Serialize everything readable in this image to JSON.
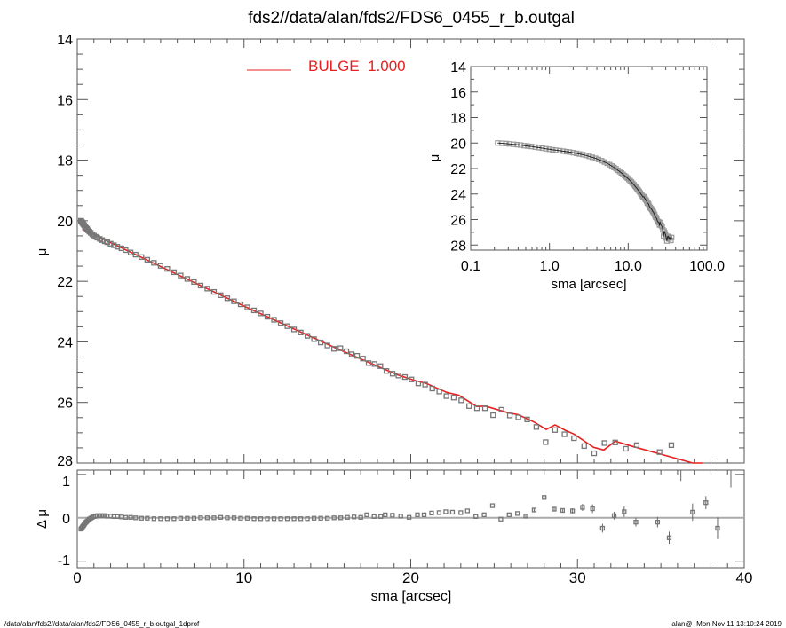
{
  "title": "fds2//data/alan/fds2/FDS6_0455_r_b.outgal",
  "footer": {
    "left": "/data/alan/fds2//data/alan/fds2/FDS6_0455_r_b.outgal_1dprof",
    "right": "alan@  Mon Nov 11 13:10:24 2019"
  },
  "colors": {
    "model": "#e8201f",
    "points": "#777777",
    "inset_model": "#222222"
  },
  "chart_data": [
    {
      "id": "main",
      "type": "scatter",
      "title": "fds2//data/alan/fds2/FDS6_0455_r_b.outgal",
      "xlabel": "",
      "ylabel": "μ",
      "xlim": [
        0,
        40
      ],
      "ylim": [
        28,
        14
      ],
      "xticks": [
        0,
        10,
        20,
        30,
        40
      ],
      "xtick_labels": [
        "0",
        "10",
        "20",
        "30",
        "40"
      ],
      "yticks": [
        14,
        16,
        18,
        20,
        22,
        24,
        26,
        28
      ],
      "ytick_labels": [
        "14",
        "16",
        "18",
        "20",
        "22",
        "24",
        "26",
        "28"
      ],
      "legend": {
        "position": "top-center",
        "entries": [
          {
            "label": "BULGE  1.000",
            "color": "#e8201f"
          }
        ]
      },
      "observed": {
        "sma": [
          0.22,
          0.25,
          0.28,
          0.31,
          0.35,
          0.39,
          0.43,
          0.48,
          0.53,
          0.59,
          0.66,
          0.73,
          0.81,
          0.9,
          1.0,
          1.1,
          1.2,
          1.35,
          1.5,
          1.65,
          1.8,
          2.0,
          2.2,
          2.4,
          2.65,
          2.9,
          3.2,
          3.5,
          3.85,
          4.2,
          4.6,
          5.0,
          5.4,
          5.8,
          6.2,
          6.6,
          7.0,
          7.4,
          7.8,
          8.2,
          8.6,
          9.0,
          9.4,
          9.8,
          10.2,
          10.6,
          11.0,
          11.4,
          11.8,
          12.2,
          12.6,
          13.0,
          13.4,
          13.8,
          14.2,
          14.6,
          15.0,
          15.4,
          15.78,
          16.14,
          16.46,
          16.78,
          17.13,
          17.47,
          17.83,
          18.18,
          18.54,
          18.91,
          19.26,
          19.65,
          20.04,
          20.45,
          20.86,
          21.29,
          21.71,
          22.14,
          22.58,
          23.03,
          23.5,
          23.97,
          24.45,
          24.94,
          25.44,
          25.94,
          26.45,
          26.98,
          27.53,
          28.09,
          28.65,
          29.22,
          29.79,
          30.4,
          31.0,
          31.62,
          32.26,
          32.9,
          33.55,
          34.92,
          35.63
        ],
        "mu": [
          20.0,
          20.02,
          20.04,
          20.07,
          20.1,
          20.13,
          20.16,
          20.21,
          20.24,
          20.27,
          20.32,
          20.36,
          20.4,
          20.45,
          20.49,
          20.53,
          20.56,
          20.6,
          20.64,
          20.68,
          20.71,
          20.76,
          20.81,
          20.86,
          20.91,
          20.97,
          21.05,
          21.12,
          21.2,
          21.29,
          21.39,
          21.49,
          21.59,
          21.7,
          21.81,
          21.92,
          22.02,
          22.14,
          22.24,
          22.35,
          22.46,
          22.56,
          22.66,
          22.76,
          22.86,
          22.96,
          23.06,
          23.17,
          23.27,
          23.38,
          23.48,
          23.59,
          23.69,
          23.8,
          23.91,
          24.02,
          24.12,
          24.23,
          24.21,
          24.31,
          24.41,
          24.46,
          24.55,
          24.7,
          24.73,
          24.8,
          24.96,
          25.05,
          25.11,
          25.16,
          25.24,
          25.37,
          25.41,
          25.54,
          25.64,
          25.79,
          25.84,
          25.93,
          26.12,
          26.19,
          26.19,
          26.42,
          26.24,
          26.43,
          26.49,
          26.56,
          26.81,
          27.31,
          26.91,
          27.05,
          27.18,
          27.44,
          27.68,
          27.34,
          27.32,
          27.53,
          27.41,
          27.64,
          27.41
        ]
      },
      "model": {
        "name": "BULGE",
        "sma": [
          0.3,
          5.0,
          10.0,
          15.61,
          18.54,
          19.16,
          20.22,
          20.93,
          22.17,
          22.88,
          23.95,
          24.48,
          25.9,
          26.43,
          27.41,
          28.12,
          28.65,
          29.27,
          29.81,
          30.96,
          31.58,
          32.26,
          33.36,
          36.91,
          37.5
        ],
        "mu": [
          20.28,
          21.51,
          22.82,
          24.23,
          24.93,
          25.08,
          25.27,
          25.37,
          25.67,
          25.76,
          26.13,
          26.12,
          26.35,
          26.4,
          26.65,
          26.89,
          26.74,
          26.92,
          27.05,
          27.48,
          27.57,
          27.28,
          27.46,
          28.09,
          28.2
        ]
      }
    },
    {
      "id": "residual",
      "type": "scatter",
      "xlabel": "sma [arcsec]",
      "ylabel": "Δ μ",
      "xlim": [
        0,
        40
      ],
      "ylim": [
        -1.15,
        1.1
      ],
      "xticks": [
        0,
        10,
        20,
        30,
        40
      ],
      "xtick_labels": [
        "0",
        "10",
        "20",
        "30",
        "40"
      ],
      "yticks": [
        -1,
        0,
        1
      ],
      "ytick_labels": [
        "-1",
        "0",
        "1"
      ],
      "reference_line": 0,
      "sma": [
        0.22,
        0.25,
        0.28,
        0.31,
        0.35,
        0.39,
        0.43,
        0.48,
        0.53,
        0.59,
        0.66,
        0.73,
        0.81,
        0.9,
        1.0,
        1.1,
        1.2,
        1.35,
        1.5,
        1.65,
        1.8,
        2.0,
        2.2,
        2.4,
        2.65,
        2.9,
        3.2,
        3.5,
        3.85,
        4.2,
        4.6,
        5.0,
        5.4,
        5.8,
        6.2,
        6.6,
        7.0,
        7.4,
        7.8,
        8.2,
        8.6,
        9.0,
        9.4,
        9.8,
        10.2,
        10.6,
        11.0,
        11.4,
        11.8,
        12.2,
        12.6,
        13.0,
        13.4,
        13.8,
        14.2,
        14.6,
        15.0,
        15.4,
        15.8,
        16.2,
        16.6,
        17.0,
        17.36,
        17.8,
        18.2,
        18.47,
        18.9,
        19.4,
        19.9,
        20.4,
        20.8,
        21.25,
        21.7,
        22.1,
        22.5,
        23.0,
        23.4,
        23.9,
        24.4,
        24.9,
        25.4,
        25.9,
        26.4,
        26.9,
        27.4,
        28.0,
        28.6,
        29.1,
        29.7,
        30.3,
        30.9,
        31.5,
        32.2,
        32.8,
        33.5,
        34.8,
        35.5,
        36.2,
        36.9,
        37.7,
        38.4,
        39.2
      ],
      "dmu": [
        -0.26,
        -0.25,
        -0.23,
        -0.21,
        -0.19,
        -0.17,
        -0.15,
        -0.12,
        -0.1,
        -0.08,
        -0.05,
        -0.03,
        -0.01,
        0.01,
        0.03,
        0.04,
        0.05,
        0.05,
        0.05,
        0.05,
        0.04,
        0.04,
        0.03,
        0.03,
        0.02,
        0.01,
        0.01,
        0.0,
        -0.01,
        -0.01,
        -0.02,
        -0.02,
        -0.02,
        -0.02,
        -0.01,
        -0.01,
        -0.01,
        0.0,
        0.0,
        0.0,
        0.01,
        0.0,
        0.0,
        -0.01,
        -0.01,
        -0.02,
        -0.02,
        -0.02,
        -0.02,
        -0.02,
        -0.02,
        -0.02,
        -0.02,
        -0.02,
        -0.01,
        -0.01,
        -0.01,
        0.0,
        0.0,
        0.01,
        0.02,
        0.01,
        0.07,
        0.03,
        0.03,
        0.07,
        0.06,
        0.04,
        0.01,
        0.07,
        0.07,
        0.11,
        0.12,
        0.14,
        0.13,
        0.12,
        0.16,
        0.03,
        0.07,
        0.28,
        -0.03,
        0.07,
        0.1,
        0.04,
        0.18,
        0.47,
        0.2,
        0.17,
        0.16,
        0.24,
        0.21,
        -0.24,
        0.05,
        0.14,
        -0.1,
        -0.1,
        -0.46,
        1.3,
        0.13,
        0.35,
        -0.24,
        1.5
      ],
      "err": [
        0.01,
        0.01,
        0.01,
        0.01,
        0.01,
        0.01,
        0.01,
        0.01,
        0.01,
        0.01,
        0.01,
        0.01,
        0.01,
        0.01,
        0.01,
        0.01,
        0.01,
        0.01,
        0.01,
        0.01,
        0.01,
        0.01,
        0.01,
        0.01,
        0.01,
        0.01,
        0.01,
        0.01,
        0.01,
        0.01,
        0.01,
        0.01,
        0.01,
        0.01,
        0.01,
        0.01,
        0.01,
        0.01,
        0.01,
        0.01,
        0.01,
        0.01,
        0.01,
        0.01,
        0.01,
        0.01,
        0.01,
        0.01,
        0.01,
        0.01,
        0.01,
        0.01,
        0.01,
        0.01,
        0.01,
        0.01,
        0.01,
        0.01,
        0.01,
        0.01,
        0.01,
        0.01,
        0.02,
        0.02,
        0.02,
        0.02,
        0.02,
        0.02,
        0.02,
        0.02,
        0.02,
        0.02,
        0.02,
        0.02,
        0.02,
        0.02,
        0.02,
        0.03,
        0.03,
        0.04,
        0.04,
        0.04,
        0.04,
        0.05,
        0.05,
        0.06,
        0.05,
        0.05,
        0.06,
        0.08,
        0.1,
        0.1,
        0.09,
        0.12,
        0.1,
        0.12,
        0.14,
        0.45,
        0.2,
        0.15,
        0.25,
        0.8
      ]
    },
    {
      "id": "inset",
      "type": "scatter",
      "xscale": "log",
      "xlabel": "sma [arcsec]",
      "ylabel": "μ",
      "xlim": [
        0.1,
        100
      ],
      "ylim": [
        28.4,
        14
      ],
      "xticks": [
        0.1,
        1,
        10,
        100
      ],
      "xtick_labels": [
        "0.1",
        "1.0",
        "10.0",
        "100.0"
      ],
      "yticks": [
        14,
        16,
        18,
        20,
        22,
        24,
        26,
        28
      ],
      "ytick_labels": [
        "14",
        "16",
        "18",
        "20",
        "22",
        "24",
        "26",
        "28"
      ]
    }
  ]
}
